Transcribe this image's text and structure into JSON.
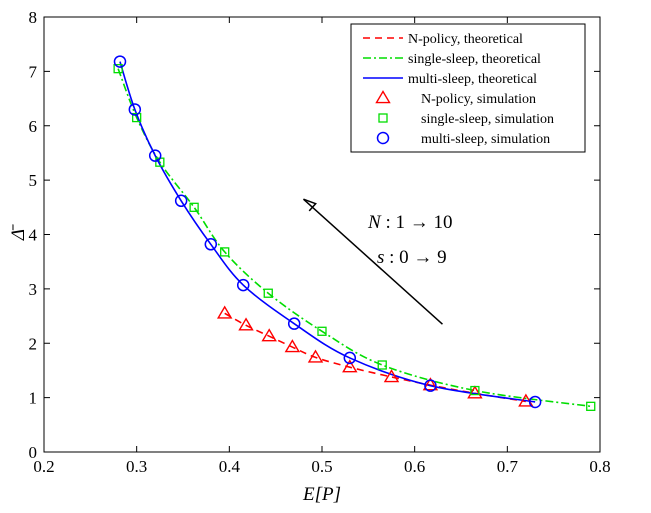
{
  "chart_data": {
    "type": "line",
    "xlabel": "E[P]",
    "ylabel": "Δ̄",
    "xlim": [
      0.2,
      0.8
    ],
    "ylim": [
      0,
      8
    ],
    "xticks": [
      "0.2",
      "0.3",
      "0.4",
      "0.5",
      "0.6",
      "0.7",
      "0.8"
    ],
    "yticks": [
      "0",
      "1",
      "2",
      "3",
      "4",
      "5",
      "6",
      "7",
      "8"
    ],
    "grid": false,
    "legend_position": "top-right",
    "series": [
      {
        "name": "N-policy, theoretical",
        "kind": "line",
        "style": "dashed",
        "color": "#ff0000",
        "x": [
          0.395,
          0.418,
          0.443,
          0.468,
          0.493,
          0.53,
          0.575,
          0.617,
          0.665,
          0.72
        ],
        "y": [
          2.55,
          2.33,
          2.13,
          1.93,
          1.74,
          1.56,
          1.38,
          1.23,
          1.08,
          0.93
        ]
      },
      {
        "name": "single-sleep, theoretical",
        "kind": "line",
        "style": "dashdot",
        "color": "#00dd00",
        "x": [
          0.28,
          0.3,
          0.325,
          0.362,
          0.395,
          0.442,
          0.5,
          0.565,
          0.665,
          0.79
        ],
        "y": [
          7.05,
          6.15,
          5.33,
          4.5,
          3.68,
          2.92,
          2.22,
          1.6,
          1.13,
          0.84
        ]
      },
      {
        "name": "multi-sleep, theoretical",
        "kind": "line",
        "style": "solid",
        "color": "#0000ff",
        "x": [
          0.282,
          0.298,
          0.32,
          0.348,
          0.38,
          0.415,
          0.47,
          0.53,
          0.617,
          0.73
        ],
        "y": [
          7.18,
          6.3,
          5.45,
          4.62,
          3.82,
          3.07,
          2.36,
          1.73,
          1.22,
          0.92
        ]
      },
      {
        "name": "N-policy, simulation",
        "kind": "marker",
        "marker": "triangle",
        "color": "#ff0000",
        "x": [
          0.395,
          0.418,
          0.443,
          0.468,
          0.493,
          0.53,
          0.575,
          0.617,
          0.665,
          0.72
        ],
        "y": [
          2.55,
          2.33,
          2.13,
          1.93,
          1.74,
          1.56,
          1.38,
          1.23,
          1.08,
          0.93
        ]
      },
      {
        "name": "single-sleep, simulation",
        "kind": "marker",
        "marker": "square",
        "color": "#00dd00",
        "x": [
          0.28,
          0.3,
          0.325,
          0.362,
          0.395,
          0.442,
          0.5,
          0.565,
          0.665,
          0.79
        ],
        "y": [
          7.05,
          6.15,
          5.33,
          4.5,
          3.68,
          2.92,
          2.22,
          1.6,
          1.13,
          0.84
        ]
      },
      {
        "name": "multi-sleep, simulation",
        "kind": "marker",
        "marker": "circle",
        "color": "#0000ff",
        "x": [
          0.282,
          0.298,
          0.32,
          0.348,
          0.38,
          0.415,
          0.47,
          0.53,
          0.617,
          0.73
        ],
        "y": [
          7.18,
          6.3,
          5.45,
          4.62,
          3.82,
          3.07,
          2.36,
          1.73,
          1.22,
          0.92
        ]
      }
    ],
    "annotations": {
      "arrow": {
        "from": [
          0.63,
          2.35
        ],
        "to": [
          0.48,
          4.65
        ],
        "color": "#000000"
      },
      "text_line1": "N : 1 → 10",
      "text_line2": "s : 0 → 9"
    }
  }
}
